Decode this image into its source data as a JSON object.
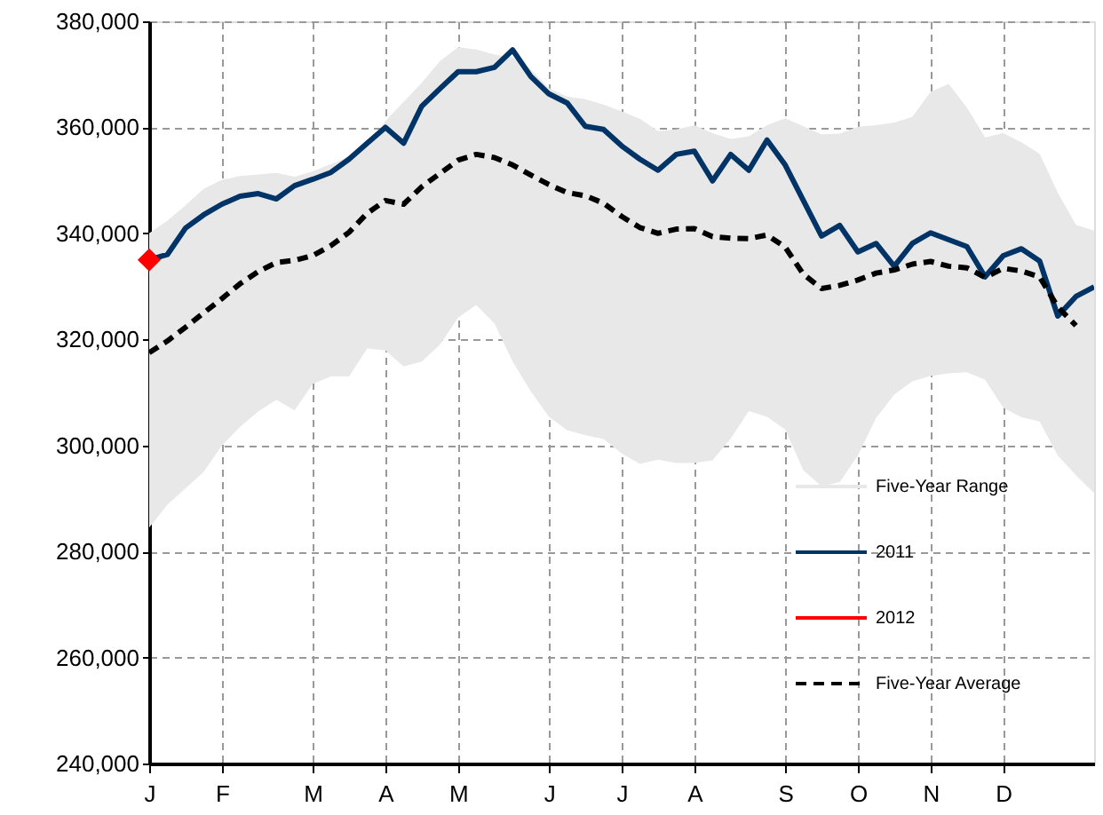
{
  "chart_data": {
    "type": "line",
    "categories": [
      "J",
      null,
      null,
      null,
      "F",
      null,
      null,
      null,
      null,
      "M",
      null,
      null,
      null,
      "A",
      null,
      null,
      null,
      "M",
      null,
      null,
      null,
      null,
      "J",
      null,
      null,
      null,
      "J",
      null,
      null,
      null,
      "A",
      null,
      null,
      null,
      null,
      "S",
      null,
      null,
      null,
      "O",
      null,
      null,
      null,
      "N",
      null,
      null,
      null,
      "D",
      null,
      null,
      null,
      null,
      null
    ],
    "ylim": [
      240000,
      380000
    ],
    "yticks": [
      {
        "value": 240000,
        "label": "240,000"
      },
      {
        "value": 260000,
        "label": "260,000"
      },
      {
        "value": 280000,
        "label": "280,000"
      },
      {
        "value": 300000,
        "label": "300,000"
      },
      {
        "value": 320000,
        "label": "320,000"
      },
      {
        "value": 340000,
        "label": "340,000"
      },
      {
        "value": 360000,
        "label": "360,000"
      },
      {
        "value": 380000,
        "label": "380,000"
      }
    ],
    "grid": true,
    "legend": "bottom right",
    "series": [
      {
        "name": "Five-Year Range",
        "type": "area",
        "color": "#e8e8e8",
        "values": [
          null,
          null,
          null,
          null,
          null,
          null,
          null,
          null,
          null,
          null,
          null,
          null,
          null,
          null,
          null,
          null,
          null,
          null,
          null,
          null,
          null,
          null,
          null,
          null,
          null,
          null,
          null,
          null,
          null,
          null,
          null,
          null,
          null,
          null,
          null,
          null,
          null,
          null,
          null,
          null,
          null,
          null,
          null,
          null,
          null,
          null,
          null,
          null,
          null,
          null,
          null,
          null,
          null
        ],
        "lower": [
          284500,
          288800,
          291900,
          295000,
          300000,
          303500,
          306400,
          308600,
          306600,
          311600,
          313000,
          313000,
          318300,
          317900,
          314900,
          315800,
          319000,
          324100,
          326500,
          323000,
          315800,
          310200,
          305400,
          302900,
          301900,
          301200,
          298500,
          296500,
          297300,
          296700,
          296700,
          297200,
          301300,
          306500,
          305400,
          303000,
          295300,
          292300,
          293100,
          298100,
          305200,
          309600,
          312100,
          313100,
          313600,
          313800,
          312400,
          307100,
          305300,
          304500,
          298100,
          294400,
          291000
        ],
        "upper": [
          340000,
          342400,
          345300,
          348400,
          350100,
          350800,
          351100,
          351400,
          350700,
          351700,
          353100,
          354400,
          356400,
          361200,
          364800,
          368400,
          372500,
          375100,
          374700,
          373700,
          373200,
          370900,
          367400,
          365800,
          365300,
          364300,
          363000,
          361600,
          359300,
          359600,
          360400,
          358900,
          357800,
          358300,
          360400,
          361700,
          360200,
          358700,
          358800,
          360100,
          360400,
          360900,
          362000,
          366700,
          368200,
          363700,
          358100,
          358900,
          357200,
          355000,
          347700,
          341600,
          340500
        ]
      },
      {
        "name": "2011",
        "color": "#003366",
        "values": [
          335000,
          336000,
          341000,
          343500,
          345500,
          347000,
          347500,
          346500,
          349000,
          350200,
          351500,
          354000,
          357000,
          360000,
          357000,
          364000,
          367300,
          370500,
          370500,
          371300,
          374600,
          369600,
          366300,
          364600,
          360200,
          359600,
          356500,
          354000,
          351900,
          354900,
          355500,
          349900,
          354900,
          351900,
          357600,
          352900,
          346200,
          339500,
          341500,
          336500,
          338100,
          333800,
          338100,
          340100,
          338800,
          337500,
          331800,
          335800,
          337100,
          334800,
          324400,
          328100,
          329900
        ]
      },
      {
        "name": "2012",
        "color": "#ff0000",
        "marker": "diamond",
        "values": [
          335000,
          null,
          null,
          null,
          null,
          null,
          null,
          null,
          null,
          null,
          null,
          null,
          null,
          null,
          null,
          null,
          null,
          null,
          null,
          null,
          null,
          null,
          null,
          null,
          null,
          null,
          null,
          null,
          null,
          null,
          null,
          null,
          null,
          null,
          null,
          null,
          null,
          null,
          null,
          null,
          null,
          null,
          null,
          null,
          null,
          null,
          null,
          null,
          null,
          null,
          null,
          null,
          null
        ]
      },
      {
        "name": "Five-Year Average",
        "color": "#000000",
        "line_style": "dashed",
        "values": [
          317500,
          319700,
          322300,
          325000,
          327700,
          330500,
          332800,
          334500,
          334900,
          335800,
          337700,
          340200,
          343800,
          346200,
          345500,
          348800,
          351300,
          353800,
          354900,
          354300,
          352900,
          351000,
          349200,
          347700,
          347100,
          345700,
          343200,
          341100,
          340000,
          340800,
          340900,
          339400,
          339100,
          339000,
          339700,
          337400,
          332300,
          329600,
          330200,
          331200,
          332500,
          333100,
          334200,
          334700,
          333800,
          333500,
          331700,
          333400,
          332900,
          331800,
          326100,
          322600,
          null
        ]
      }
    ]
  }
}
